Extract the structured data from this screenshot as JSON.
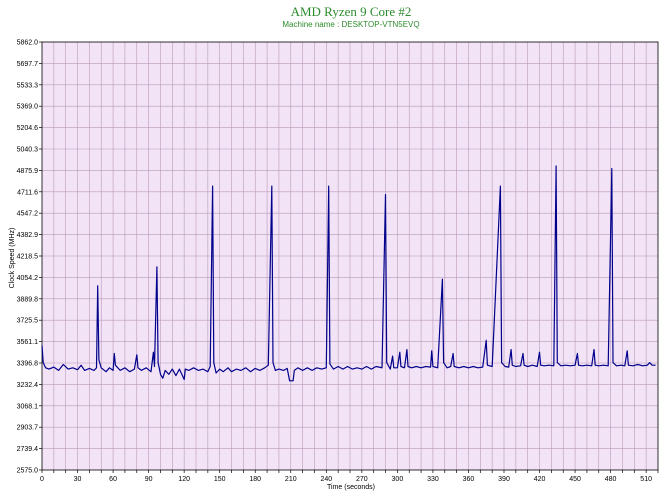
{
  "colors": {
    "plot_background": "#f3e3f6",
    "grid": "#b99ab9",
    "series": "#00008b",
    "title": "#2e8b2e",
    "axis": "#000000"
  },
  "chart_data": {
    "type": "line",
    "title": "AMD Ryzen 9 Core #2",
    "subtitle": "Machine name : DESKTOP-VTN5EVQ",
    "xlabel": "Time (seconds)",
    "ylabel": "Clock Speed (MHz)",
    "xlim": [
      0,
      520
    ],
    "ylim": [
      2575.0,
      5862.0
    ],
    "grid": true,
    "legend": "none",
    "x_ticks": [
      0,
      30,
      60,
      90,
      120,
      150,
      180,
      210,
      240,
      270,
      300,
      330,
      360,
      390,
      420,
      450,
      480,
      510
    ],
    "y_ticks": [
      "2575.0",
      "2739.4",
      "2903.7",
      "3068.1",
      "3232.4",
      "3396.8",
      "3561.1",
      "3725.5",
      "3889.8",
      "4054.2",
      "4218.5",
      "4382.9",
      "4547.2",
      "4711.6",
      "4875.9",
      "5040.3",
      "5204.6",
      "5369.0",
      "5533.3",
      "5697.7",
      "5862.0"
    ],
    "x_minor_step": 10,
    "series": [
      {
        "points": [
          [
            0,
            3530
          ],
          [
            1,
            3400
          ],
          [
            3,
            3360
          ],
          [
            6,
            3350
          ],
          [
            10,
            3365
          ],
          [
            14,
            3340
          ],
          [
            18,
            3385
          ],
          [
            22,
            3350
          ],
          [
            26,
            3360
          ],
          [
            30,
            3345
          ],
          [
            33,
            3380
          ],
          [
            36,
            3340
          ],
          [
            40,
            3355
          ],
          [
            44,
            3340
          ],
          [
            46,
            3360
          ],
          [
            47,
            3990
          ],
          [
            48,
            3420
          ],
          [
            50,
            3360
          ],
          [
            54,
            3330
          ],
          [
            57,
            3360
          ],
          [
            60,
            3340
          ],
          [
            61,
            3470
          ],
          [
            62,
            3380
          ],
          [
            66,
            3340
          ],
          [
            70,
            3360
          ],
          [
            74,
            3330
          ],
          [
            78,
            3350
          ],
          [
            80,
            3460
          ],
          [
            81,
            3360
          ],
          [
            84,
            3340
          ],
          [
            88,
            3360
          ],
          [
            92,
            3330
          ],
          [
            94,
            3480
          ],
          [
            95,
            3370
          ],
          [
            97,
            4135
          ],
          [
            98,
            3400
          ],
          [
            100,
            3310
          ],
          [
            102,
            3280
          ],
          [
            104,
            3340
          ],
          [
            107,
            3310
          ],
          [
            110,
            3350
          ],
          [
            113,
            3300
          ],
          [
            116,
            3350
          ],
          [
            118,
            3310
          ],
          [
            120,
            3270
          ],
          [
            121,
            3350
          ],
          [
            124,
            3340
          ],
          [
            128,
            3360
          ],
          [
            132,
            3340
          ],
          [
            136,
            3350
          ],
          [
            140,
            3330
          ],
          [
            142,
            3370
          ],
          [
            144,
            4755
          ],
          [
            145,
            3400
          ],
          [
            147,
            3320
          ],
          [
            150,
            3350
          ],
          [
            153,
            3330
          ],
          [
            157,
            3360
          ],
          [
            160,
            3330
          ],
          [
            164,
            3350
          ],
          [
            168,
            3340
          ],
          [
            172,
            3360
          ],
          [
            176,
            3330
          ],
          [
            180,
            3355
          ],
          [
            184,
            3340
          ],
          [
            188,
            3360
          ],
          [
            191,
            3380
          ],
          [
            194,
            4755
          ],
          [
            195,
            3400
          ],
          [
            197,
            3340
          ],
          [
            200,
            3350
          ],
          [
            204,
            3340
          ],
          [
            207,
            3355
          ],
          [
            209,
            3260
          ],
          [
            212,
            3260
          ],
          [
            213,
            3340
          ],
          [
            216,
            3360
          ],
          [
            220,
            3340
          ],
          [
            224,
            3360
          ],
          [
            228,
            3340
          ],
          [
            232,
            3360
          ],
          [
            236,
            3350
          ],
          [
            240,
            3360
          ],
          [
            242,
            4755
          ],
          [
            243,
            3390
          ],
          [
            246,
            3350
          ],
          [
            250,
            3370
          ],
          [
            254,
            3350
          ],
          [
            258,
            3370
          ],
          [
            262,
            3350
          ],
          [
            266,
            3360
          ],
          [
            270,
            3350
          ],
          [
            274,
            3370
          ],
          [
            278,
            3350
          ],
          [
            282,
            3370
          ],
          [
            287,
            3360
          ],
          [
            290,
            4690
          ],
          [
            291,
            3400
          ],
          [
            294,
            3350
          ],
          [
            296,
            3450
          ],
          [
            297,
            3360
          ],
          [
            300,
            3360
          ],
          [
            302,
            3480
          ],
          [
            303,
            3370
          ],
          [
            306,
            3360
          ],
          [
            308,
            3500
          ],
          [
            309,
            3370
          ],
          [
            312,
            3360
          ],
          [
            316,
            3370
          ],
          [
            320,
            3360
          ],
          [
            324,
            3370
          ],
          [
            328,
            3365
          ],
          [
            329,
            3490
          ],
          [
            330,
            3370
          ],
          [
            334,
            3360
          ],
          [
            338,
            4040
          ],
          [
            339,
            3400
          ],
          [
            342,
            3360
          ],
          [
            345,
            3370
          ],
          [
            347,
            3470
          ],
          [
            348,
            3370
          ],
          [
            352,
            3360
          ],
          [
            356,
            3370
          ],
          [
            360,
            3360
          ],
          [
            364,
            3370
          ],
          [
            368,
            3360
          ],
          [
            372,
            3365
          ],
          [
            375,
            3570
          ],
          [
            376,
            3380
          ],
          [
            380,
            3370
          ],
          [
            387,
            4755
          ],
          [
            388,
            3400
          ],
          [
            391,
            3370
          ],
          [
            394,
            3365
          ],
          [
            396,
            3500
          ],
          [
            397,
            3380
          ],
          [
            400,
            3370
          ],
          [
            404,
            3375
          ],
          [
            406,
            3470
          ],
          [
            407,
            3380
          ],
          [
            410,
            3370
          ],
          [
            414,
            3380
          ],
          [
            418,
            3370
          ],
          [
            420,
            3480
          ],
          [
            421,
            3380
          ],
          [
            424,
            3375
          ],
          [
            428,
            3380
          ],
          [
            432,
            3375
          ],
          [
            434,
            4910
          ],
          [
            435,
            3400
          ],
          [
            438,
            3375
          ],
          [
            442,
            3380
          ],
          [
            446,
            3375
          ],
          [
            450,
            3380
          ],
          [
            452,
            3470
          ],
          [
            453,
            3380
          ],
          [
            456,
            3375
          ],
          [
            460,
            3380
          ],
          [
            464,
            3375
          ],
          [
            466,
            3500
          ],
          [
            467,
            3380
          ],
          [
            470,
            3375
          ],
          [
            474,
            3380
          ],
          [
            478,
            3375
          ],
          [
            481,
            4890
          ],
          [
            482,
            3400
          ],
          [
            485,
            3375
          ],
          [
            489,
            3380
          ],
          [
            492,
            3375
          ],
          [
            494,
            3490
          ],
          [
            495,
            3380
          ],
          [
            499,
            3375
          ],
          [
            503,
            3385
          ],
          [
            507,
            3375
          ],
          [
            511,
            3380
          ],
          [
            513,
            3400
          ],
          [
            515,
            3380
          ],
          [
            518,
            3380
          ]
        ]
      }
    ]
  }
}
